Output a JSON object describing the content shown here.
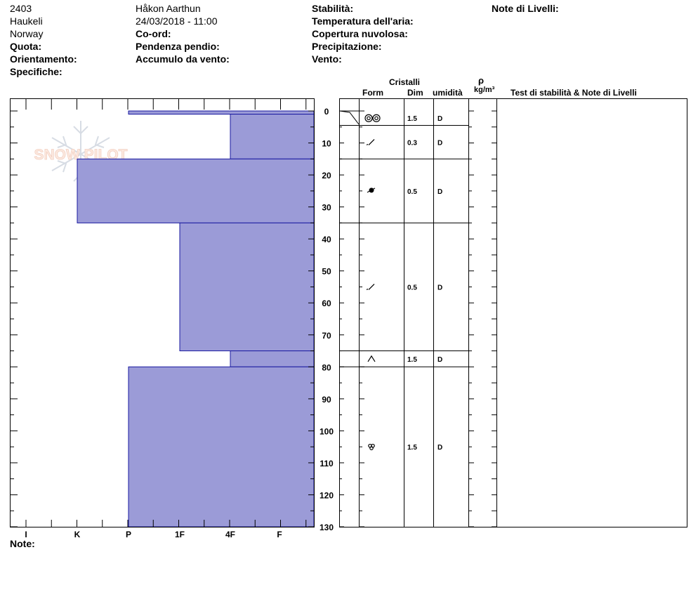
{
  "header": {
    "col1": [
      "2403",
      "Haukeli",
      "Norway"
    ],
    "col1_labels": [
      "Quota:",
      "Orientamento:",
      "Specifiche:"
    ],
    "observer": "Håkon Aarthun",
    "datetime": "24/03/2018 - 11:00",
    "col2_labels": [
      "Co-ord:",
      "Pendenza pendio:",
      "Accumulo da vento:"
    ],
    "col3_labels": [
      "Stabilità:",
      "Temperatura dell'aria:",
      "Copertura nuvolosa:",
      "Precipitazione:",
      "Vento:"
    ],
    "col4_label": "Note di Livelli:",
    "notes_label": "Note:"
  },
  "columns": {
    "cristalli": "Cristalli",
    "form": "Form",
    "dim": "Dim",
    "umidita": "umidità",
    "rho": "ρ",
    "density_unit": "kg/m³",
    "stability": "Test di stabilità & Note di Livelli"
  },
  "logo": {
    "text": "SNOW PILOT"
  },
  "chart_data": {
    "type": "bar",
    "orientation": "horizontal",
    "y_range": [
      0,
      130
    ],
    "y_ticks": [
      0,
      10,
      20,
      30,
      40,
      50,
      60,
      70,
      80,
      90,
      100,
      110,
      120,
      130
    ],
    "hardness_scale": [
      "I",
      "K",
      "P",
      "1F",
      "4F",
      "F"
    ],
    "fill_color": "#9b9bd7",
    "edge_color": "#1a1aa0",
    "hardness_profile": [
      {
        "top": 0,
        "bottom": 1,
        "hardness": "P"
      },
      {
        "top": 1,
        "bottom": 15,
        "hardness": "4F"
      },
      {
        "top": 15,
        "bottom": 35,
        "hardness": "K"
      },
      {
        "top": 35,
        "bottom": 75,
        "hardness": "1F"
      },
      {
        "top": 75,
        "bottom": 80,
        "hardness": "4F"
      },
      {
        "top": 80,
        "bottom": 130,
        "hardness": "P"
      }
    ],
    "layers": [
      {
        "top": 0,
        "bottom": 4.5,
        "form": "rounded-grains",
        "size": "1.5",
        "moisture": "D"
      },
      {
        "top": 4.5,
        "bottom": 15,
        "form": "decomposing",
        "size": "0.3",
        "moisture": "D"
      },
      {
        "top": 15,
        "bottom": 35,
        "form": "graupel",
        "size": "0.5",
        "moisture": "D"
      },
      {
        "top": 35,
        "bottom": 75,
        "form": "decomposing",
        "size": "0.5",
        "moisture": "D"
      },
      {
        "top": 75,
        "bottom": 80,
        "form": "depth-hoar",
        "size": "1.5",
        "moisture": "D"
      },
      {
        "top": 80,
        "bottom": 130,
        "form": "melt-forms",
        "size": "1.5",
        "moisture": "D"
      }
    ]
  }
}
